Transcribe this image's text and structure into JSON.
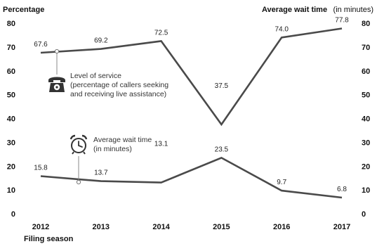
{
  "chart_data": {
    "type": "line",
    "categories": [
      "2012",
      "2013",
      "2014",
      "2015",
      "2016",
      "2017"
    ],
    "xlabel": "Filing season",
    "left_axis_title": "Percentage",
    "right_axis_title": "Average wait time",
    "right_axis_unit": "(in minutes)",
    "ylim": [
      0,
      80
    ],
    "y_ticks": [
      "0",
      "10",
      "20",
      "30",
      "40",
      "50",
      "60",
      "70",
      "80"
    ],
    "grid": false,
    "series": [
      {
        "values": [
          67.6,
          69.2,
          72.5,
          37.5,
          74.0,
          77.8
        ],
        "labels": [
          "67.6",
          "69.2",
          "72.5",
          "37.5",
          "74.0",
          "77.8"
        ],
        "color": "#4a4a4a",
        "annotation": [
          "Level of service",
          "(percentage of callers seeking",
          "and receiving live assistance)"
        ],
        "icon": "telephone-icon"
      },
      {
        "values": [
          15.8,
          13.7,
          13.1,
          23.5,
          9.7,
          6.8
        ],
        "labels": [
          "15.8",
          "13.7",
          "13.1",
          "23.5",
          "9.7",
          "6.8"
        ],
        "color": "#4a4a4a",
        "annotation": [
          "Average wait time",
          "(in minutes)"
        ],
        "icon": "alarm-clock-icon"
      }
    ]
  }
}
